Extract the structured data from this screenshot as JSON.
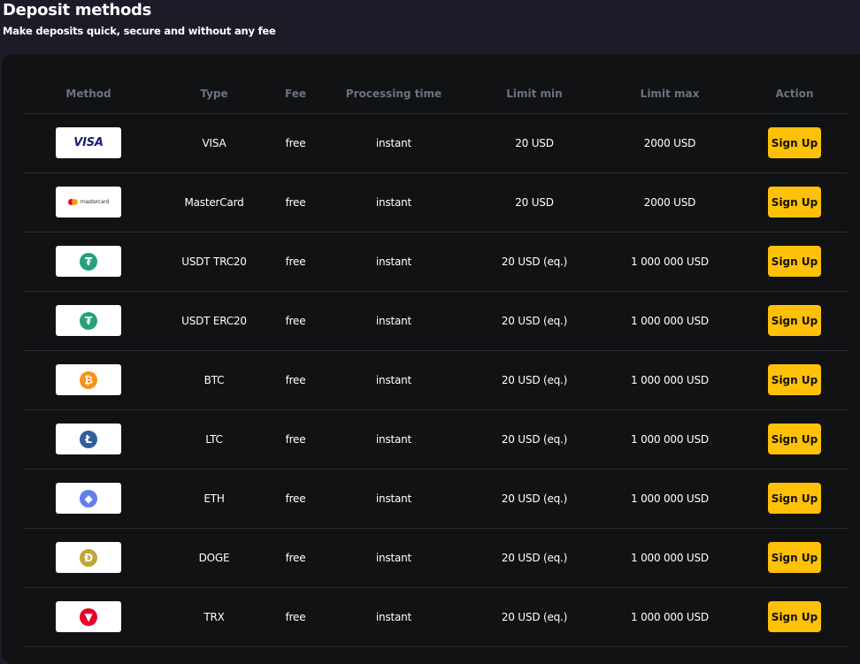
{
  "header": {
    "title": "Deposit methods",
    "subtitle": "Make deposits quick, secure and without any fee"
  },
  "columns": [
    "Method",
    "Type",
    "Fee",
    "Processing time",
    "Limit min",
    "Limit max",
    "Action"
  ],
  "rows": [
    {
      "logo": "visa-logo",
      "type": "VISA",
      "fee": "free",
      "time": "instant",
      "min": "20 USD",
      "max": "2000 USD",
      "action": "Sign Up"
    },
    {
      "logo": "mastercard-logo",
      "type": "MasterCard",
      "fee": "free",
      "time": "instant",
      "min": "20 USD",
      "max": "2000 USD",
      "action": "Sign Up"
    },
    {
      "logo": "tether-icon",
      "type": "USDT TRC20",
      "fee": "free",
      "time": "instant",
      "min": "20 USD (eq.)",
      "max": "1 000 000 USD",
      "action": "Sign Up"
    },
    {
      "logo": "tether-icon",
      "type": "USDT ERC20",
      "fee": "free",
      "time": "instant",
      "min": "20 USD (eq.)",
      "max": "1 000 000 USD",
      "action": "Sign Up"
    },
    {
      "logo": "bitcoin-icon",
      "type": "BTC",
      "fee": "free",
      "time": "instant",
      "min": "20 USD (eq.)",
      "max": "1 000 000 USD",
      "action": "Sign Up"
    },
    {
      "logo": "litecoin-icon",
      "type": "LTC",
      "fee": "free",
      "time": "instant",
      "min": "20 USD (eq.)",
      "max": "1 000 000 USD",
      "action": "Sign Up"
    },
    {
      "logo": "ethereum-icon",
      "type": "ETH",
      "fee": "free",
      "time": "instant",
      "min": "20 USD (eq.)",
      "max": "1 000 000 USD",
      "action": "Sign Up"
    },
    {
      "logo": "dogecoin-icon",
      "type": "DOGE",
      "fee": "free",
      "time": "instant",
      "min": "20 USD (eq.)",
      "max": "1 000 000 USD",
      "action": "Sign Up"
    },
    {
      "logo": "tron-icon",
      "type": "TRX",
      "fee": "free",
      "time": "instant",
      "min": "20 USD (eq.)",
      "max": "1 000 000 USD",
      "action": "Sign Up"
    }
  ],
  "logos": {
    "visa": "VISA",
    "mastercard": "mastercard"
  },
  "colors": {
    "accent": "#ffc107",
    "tether": "#26a17b",
    "bitcoin": "#f7931a",
    "litecoin": "#345d9d",
    "ethereum": "#627eea",
    "dogecoin": "#c2a633",
    "tron": "#eb0029"
  }
}
